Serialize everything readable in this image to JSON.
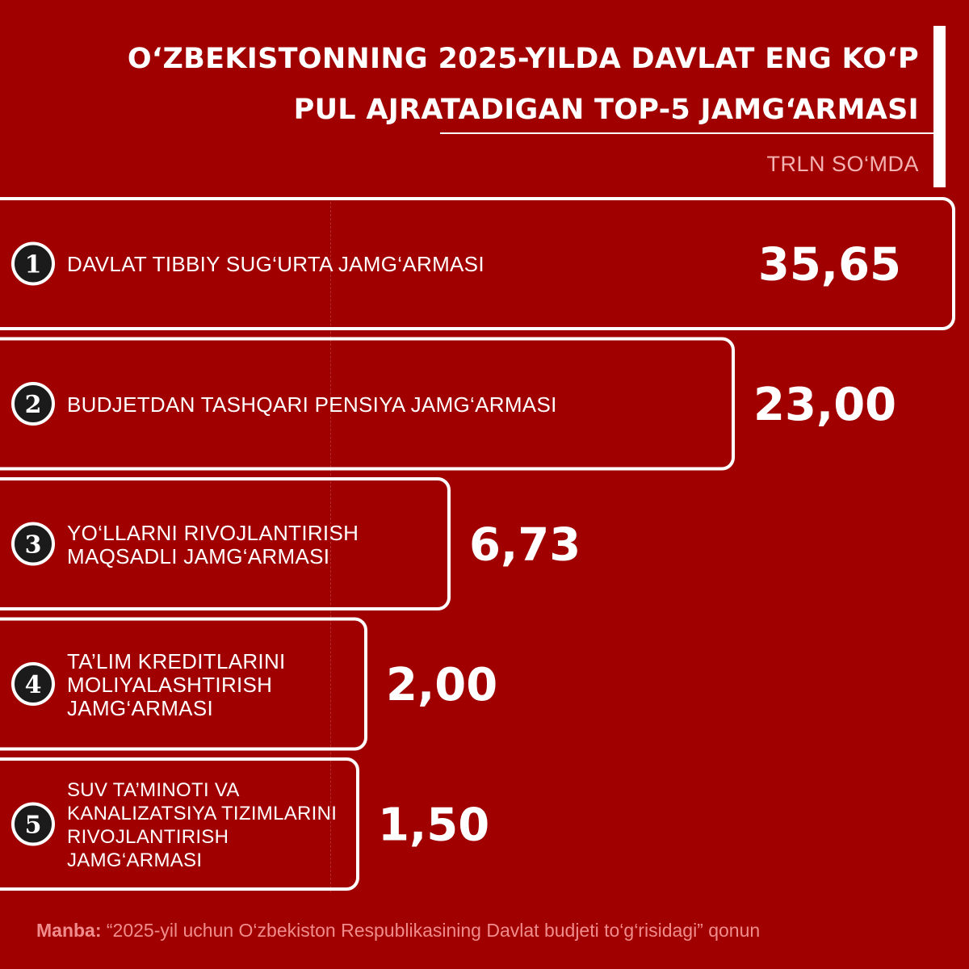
{
  "title_lines": [
    "O‘ZBEKISTONNING 2025-YILDA DAVLAT ENG KO‘P",
    "PUL AJRATADIGAN TOP-5 JAMG‘ARMASI"
  ],
  "unit": "TRLN SO‘MDA",
  "source": {
    "label": "Manba:",
    "text": "“2025-yil uchun O‘zbekiston Respublikasining Davlat budjeti to‘g‘risidagi” qonun"
  },
  "colors": {
    "background": "#a00000",
    "bar_stroke": "#ffffff",
    "rank_circle": "#1b1b1b",
    "unit_text": "#f4b3b3",
    "source_text": "#f08c8c"
  },
  "chart_data": {
    "type": "bar",
    "orientation": "horizontal",
    "categories": [
      "DAVLAT TIBBIY SUG‘URTA JAMG‘ARMASI",
      "BUDJETDAN TASHQARI PENSIYA JAMG‘ARMASI",
      "YO‘LLARNI RIVOJLANTIRISH MAQSADLI JAMG‘ARMASI",
      "TA’LIM KREDITLARINI MOLIYALASHTIRISH JAMG‘ARMASI",
      "SUV TA’MINOTI VA KANALIZATSIYA TIZIMLARINI RIVOJLANTIRISH JAMG‘ARMASI"
    ],
    "category_lines": [
      [
        "DAVLAT TIBBIY SUG‘URTA JAMG‘ARMASI"
      ],
      [
        "BUDJETDAN TASHQARI PENSIYA JAMG‘ARMASI"
      ],
      [
        "YO‘LLARNI RIVOJLANTIRISH",
        "MAQSADLI JAMG‘ARMASI"
      ],
      [
        "TA’LIM KREDITLARINI",
        "MOLIYALASHTIRISH",
        "JAMG‘ARMASI"
      ],
      [
        "SUV TA’MINOTI VA",
        "KANALIZATSIYA TIZIMLARINI",
        "RIVOJLANTIRISH",
        "JAMG‘ARMASI"
      ]
    ],
    "ranks": [
      "1",
      "2",
      "3",
      "4",
      "5"
    ],
    "values": [
      35.65,
      23.0,
      6.73,
      2.0,
      1.5
    ],
    "value_labels": [
      "35,65",
      "23,00",
      "6,73",
      "2,00",
      "1,50"
    ],
    "title": "O‘ZBEKISTONNING 2025-YILDA DAVLAT ENG KO‘P PUL AJRATADIGAN TOP-5 JAMG‘ARMASI",
    "xlabel": "",
    "ylabel": "",
    "unit": "TRLN SO‘MDA",
    "grid": false,
    "legend": "none"
  }
}
